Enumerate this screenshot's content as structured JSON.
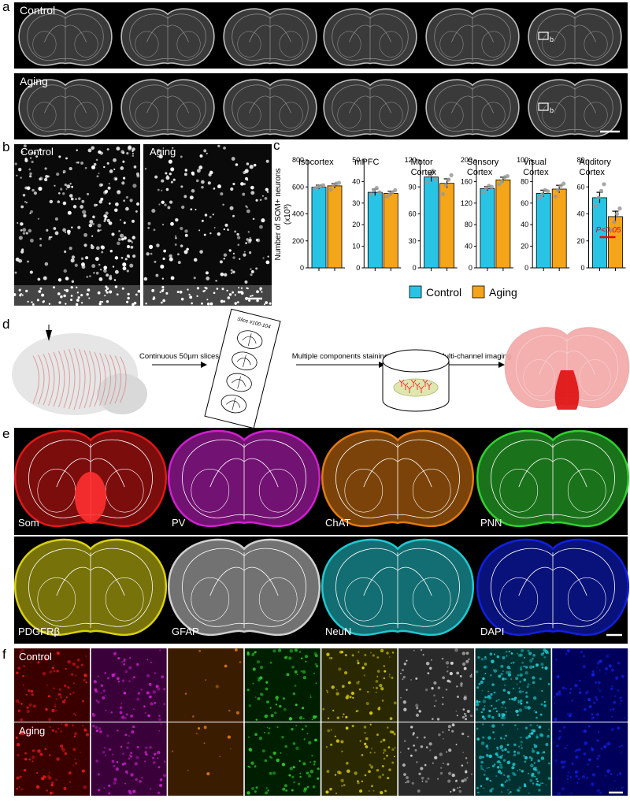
{
  "panel_labels": [
    "a",
    "b",
    "c",
    "d",
    "e",
    "f"
  ],
  "panel_a": {
    "rows": [
      "Control",
      "Aging"
    ],
    "region_marker": "b"
  },
  "panel_b": {
    "images": [
      "Control",
      "Aging"
    ]
  },
  "panel_c": {
    "y_label": [
      "Number of  SOM+ neurons",
      "(x10³)"
    ]
  },
  "chart_data": [
    {
      "type": "bar",
      "title": "Isocortex",
      "ylim": [
        0,
        800
      ],
      "yticks": [
        0,
        200,
        400,
        600,
        800
      ],
      "series": [
        {
          "name": "Control",
          "color": "#29c4e5",
          "values": [
            598
          ],
          "errors": [
            15
          ],
          "points": [
            590,
            600,
            605,
            612
          ]
        },
        {
          "name": "Aging",
          "color": "#f5a519",
          "values": [
            608
          ],
          "errors": [
            18
          ],
          "points": [
            580,
            615,
            625,
            630
          ]
        }
      ]
    },
    {
      "type": "bar",
      "title": "mPFC",
      "ylim": [
        0,
        50
      ],
      "yticks": [
        0,
        10,
        20,
        30,
        40,
        50
      ],
      "series": [
        {
          "name": "Control",
          "color": "#29c4e5",
          "values": [
            35
          ],
          "errors": [
            1.5
          ],
          "points": [
            34,
            36,
            37,
            35
          ]
        },
        {
          "name": "Aging",
          "color": "#f5a519",
          "values": [
            34.5
          ],
          "errors": [
            1
          ],
          "points": [
            33,
            34,
            35,
            36
          ]
        }
      ]
    },
    {
      "type": "bar",
      "title": "Motor Cortex",
      "ylim": [
        0,
        120
      ],
      "yticks": [
        0,
        30,
        60,
        90,
        120
      ],
      "series": [
        {
          "name": "Control",
          "color": "#29c4e5",
          "values": [
            101
          ],
          "errors": [
            5
          ],
          "points": [
            95,
            103,
            108,
            98
          ]
        },
        {
          "name": "Aging",
          "color": "#f5a519",
          "values": [
            94
          ],
          "errors": [
            5
          ],
          "points": [
            82,
            92,
            98,
            103
          ]
        }
      ]
    },
    {
      "type": "bar",
      "title": "Sensory Cortex",
      "ylim": [
        0,
        200
      ],
      "yticks": [
        0,
        40,
        80,
        120,
        160,
        200
      ],
      "series": [
        {
          "name": "Control",
          "color": "#29c4e5",
          "values": [
            147
          ],
          "errors": [
            4
          ],
          "points": [
            140,
            148,
            152,
            150
          ]
        },
        {
          "name": "Aging",
          "color": "#f5a519",
          "values": [
            163
          ],
          "errors": [
            5
          ],
          "points": [
            155,
            160,
            168,
            170
          ]
        }
      ]
    },
    {
      "type": "bar",
      "title": "Visual Cortex",
      "ylim": [
        0,
        100
      ],
      "yticks": [
        0,
        20,
        40,
        60,
        80,
        100
      ],
      "series": [
        {
          "name": "Control",
          "color": "#29c4e5",
          "values": [
            69
          ],
          "errors": [
            3
          ],
          "points": [
            65,
            68,
            72,
            71
          ]
        },
        {
          "name": "Aging",
          "color": "#f5a519",
          "values": [
            73
          ],
          "errors": [
            3.5
          ],
          "points": [
            66,
            72,
            76,
            78
          ]
        }
      ]
    },
    {
      "type": "bar",
      "title": "Auditory Cortex",
      "ylim": [
        0,
        80
      ],
      "yticks": [
        0,
        20,
        40,
        60,
        80
      ],
      "annotation": "P<0.05",
      "series": [
        {
          "name": "Control",
          "color": "#29c4e5",
          "values": [
            52
          ],
          "errors": [
            4
          ],
          "points": [
            46,
            52,
            57,
            62
          ]
        },
        {
          "name": "Aging",
          "color": "#f5a519",
          "values": [
            38
          ],
          "errors": [
            4
          ],
          "points": [
            28,
            34,
            40,
            44
          ]
        }
      ]
    }
  ],
  "panel_d": {
    "steps": [
      "Continuous 50µm slices",
      "Multiple components staining",
      "Multi-channel imaging"
    ],
    "slide_label": "Slice #100-104"
  },
  "panel_e": {
    "stains": [
      "Som",
      "PV",
      "ChAT",
      "PNN",
      "PDGFRβ",
      "GFAP",
      "NeuN",
      "DAPI"
    ]
  },
  "panel_f": {
    "rows": [
      "Control",
      "Aging"
    ]
  }
}
